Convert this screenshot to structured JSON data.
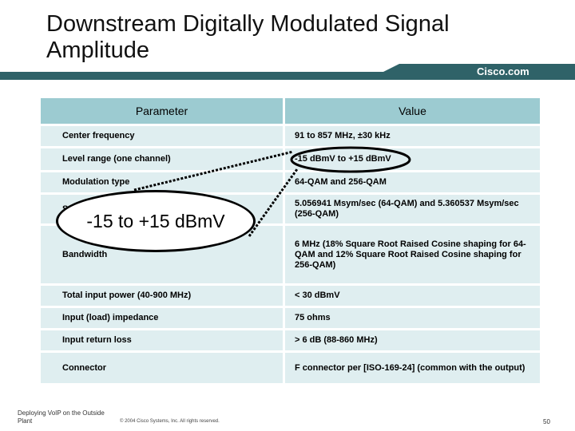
{
  "slide": {
    "title": "Downstream Digitally Modulated Signal Amplitude",
    "brand": "Cisco.com",
    "table": {
      "headers": [
        "Parameter",
        "Value"
      ],
      "rows": [
        {
          "param": "Center frequency",
          "value": "91 to 857 MHz, ±30 kHz"
        },
        {
          "param": "Level range (one channel)",
          "value": "-15 dBmV to +15 dBmV"
        },
        {
          "param": "Modulation type",
          "value": "64-QAM and 256-QAM"
        },
        {
          "param": "Symbol rate (nominal)",
          "value": "5.056941 Msym/sec (64-QAM) and 5.360537 Msym/sec (256-QAM)"
        },
        {
          "param": "Bandwidth",
          "value": "6 MHz (18% Square Root Raised Cosine shaping for 64-QAM and 12% Square Root Raised Cosine shaping for 256-QAM)"
        },
        {
          "param": "Total input power (40-900 MHz)",
          "value": "< 30 dBmV"
        },
        {
          "param": "Input (load) impedance",
          "value": "75 ohms"
        },
        {
          "param": "Input return loss",
          "value": "> 6 dB (88-860 MHz)"
        },
        {
          "param": "Connector",
          "value": "F connector per [ISO-169-24] (common with the output)"
        }
      ]
    },
    "callout": "-15 to +15 dBmV",
    "footer": {
      "left": "Deploying VoIP on the Outside Plant",
      "copyright": "© 2004 Cisco Systems, Inc. All rights reserved.",
      "page": "50"
    }
  }
}
